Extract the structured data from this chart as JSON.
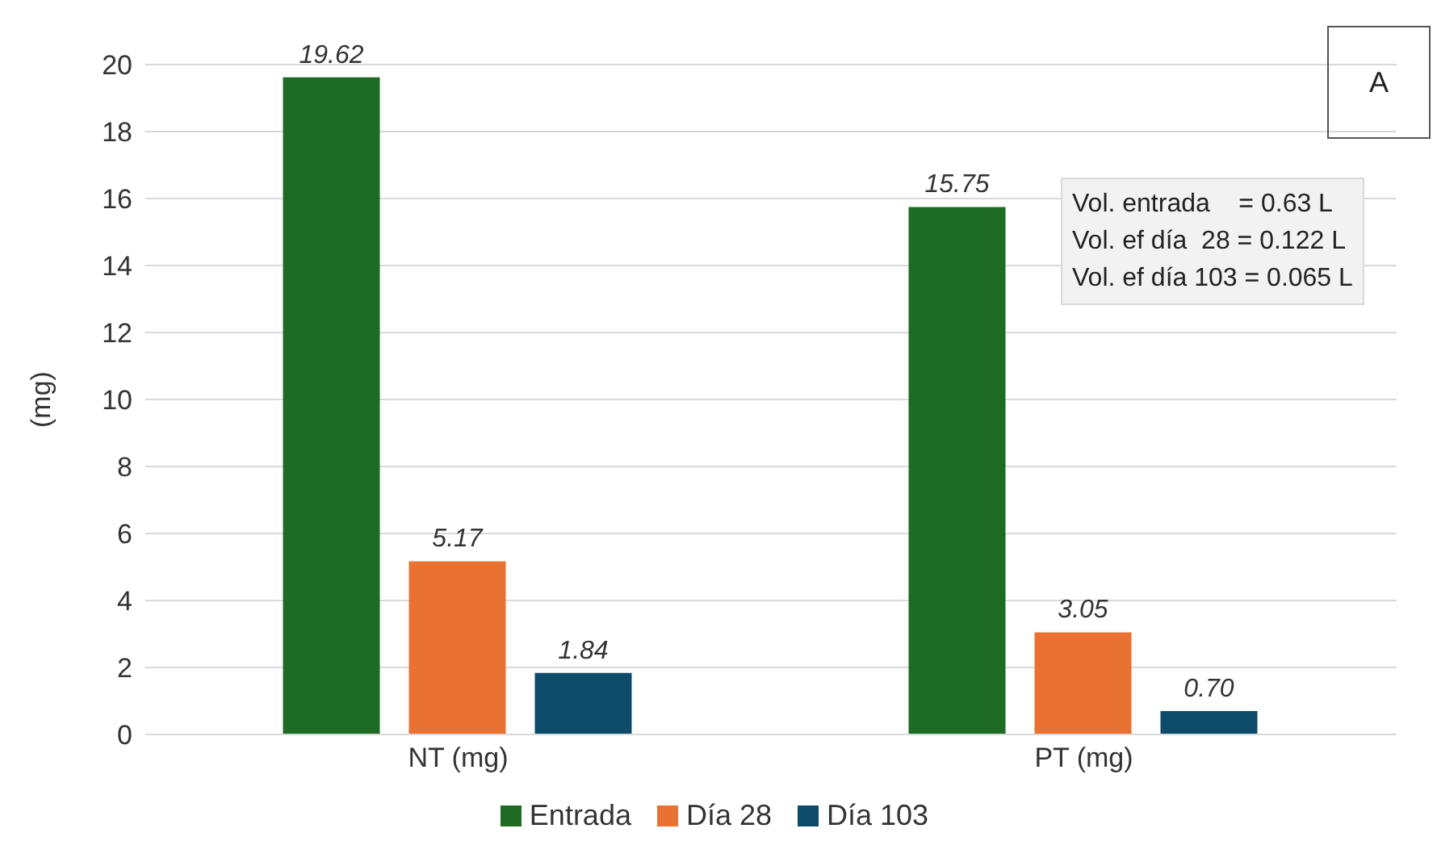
{
  "chart_data": {
    "type": "bar",
    "categories": [
      "NT (mg)",
      "PT (mg)"
    ],
    "ylabel": "(mg)",
    "series": [
      {
        "name": "Entrada",
        "color": "#1e6b23",
        "values": [
          19.62,
          15.75
        ],
        "value_labels": [
          "19.62",
          "15.75"
        ]
      },
      {
        "name": "Día 28",
        "color": "#e97132",
        "values": [
          5.17,
          3.05
        ],
        "value_labels": [
          "5.17",
          "3.05"
        ]
      },
      {
        "name": "Día 103",
        "color": "#0e4a6a",
        "values": [
          1.84,
          0.7
        ],
        "value_labels": [
          "1.84",
          "0.70"
        ]
      }
    ],
    "ylim": [
      0,
      20
    ],
    "yticks": [
      0,
      2,
      4,
      6,
      8,
      10,
      12,
      14,
      16,
      18,
      20
    ],
    "grid": "y",
    "legend": "bottom",
    "annotations": [
      "A",
      "Vol. entrada    = 0.63 L\nVol. ef día  28 = 0.122 L\nVol. ef día 103 = 0.065 L"
    ]
  }
}
